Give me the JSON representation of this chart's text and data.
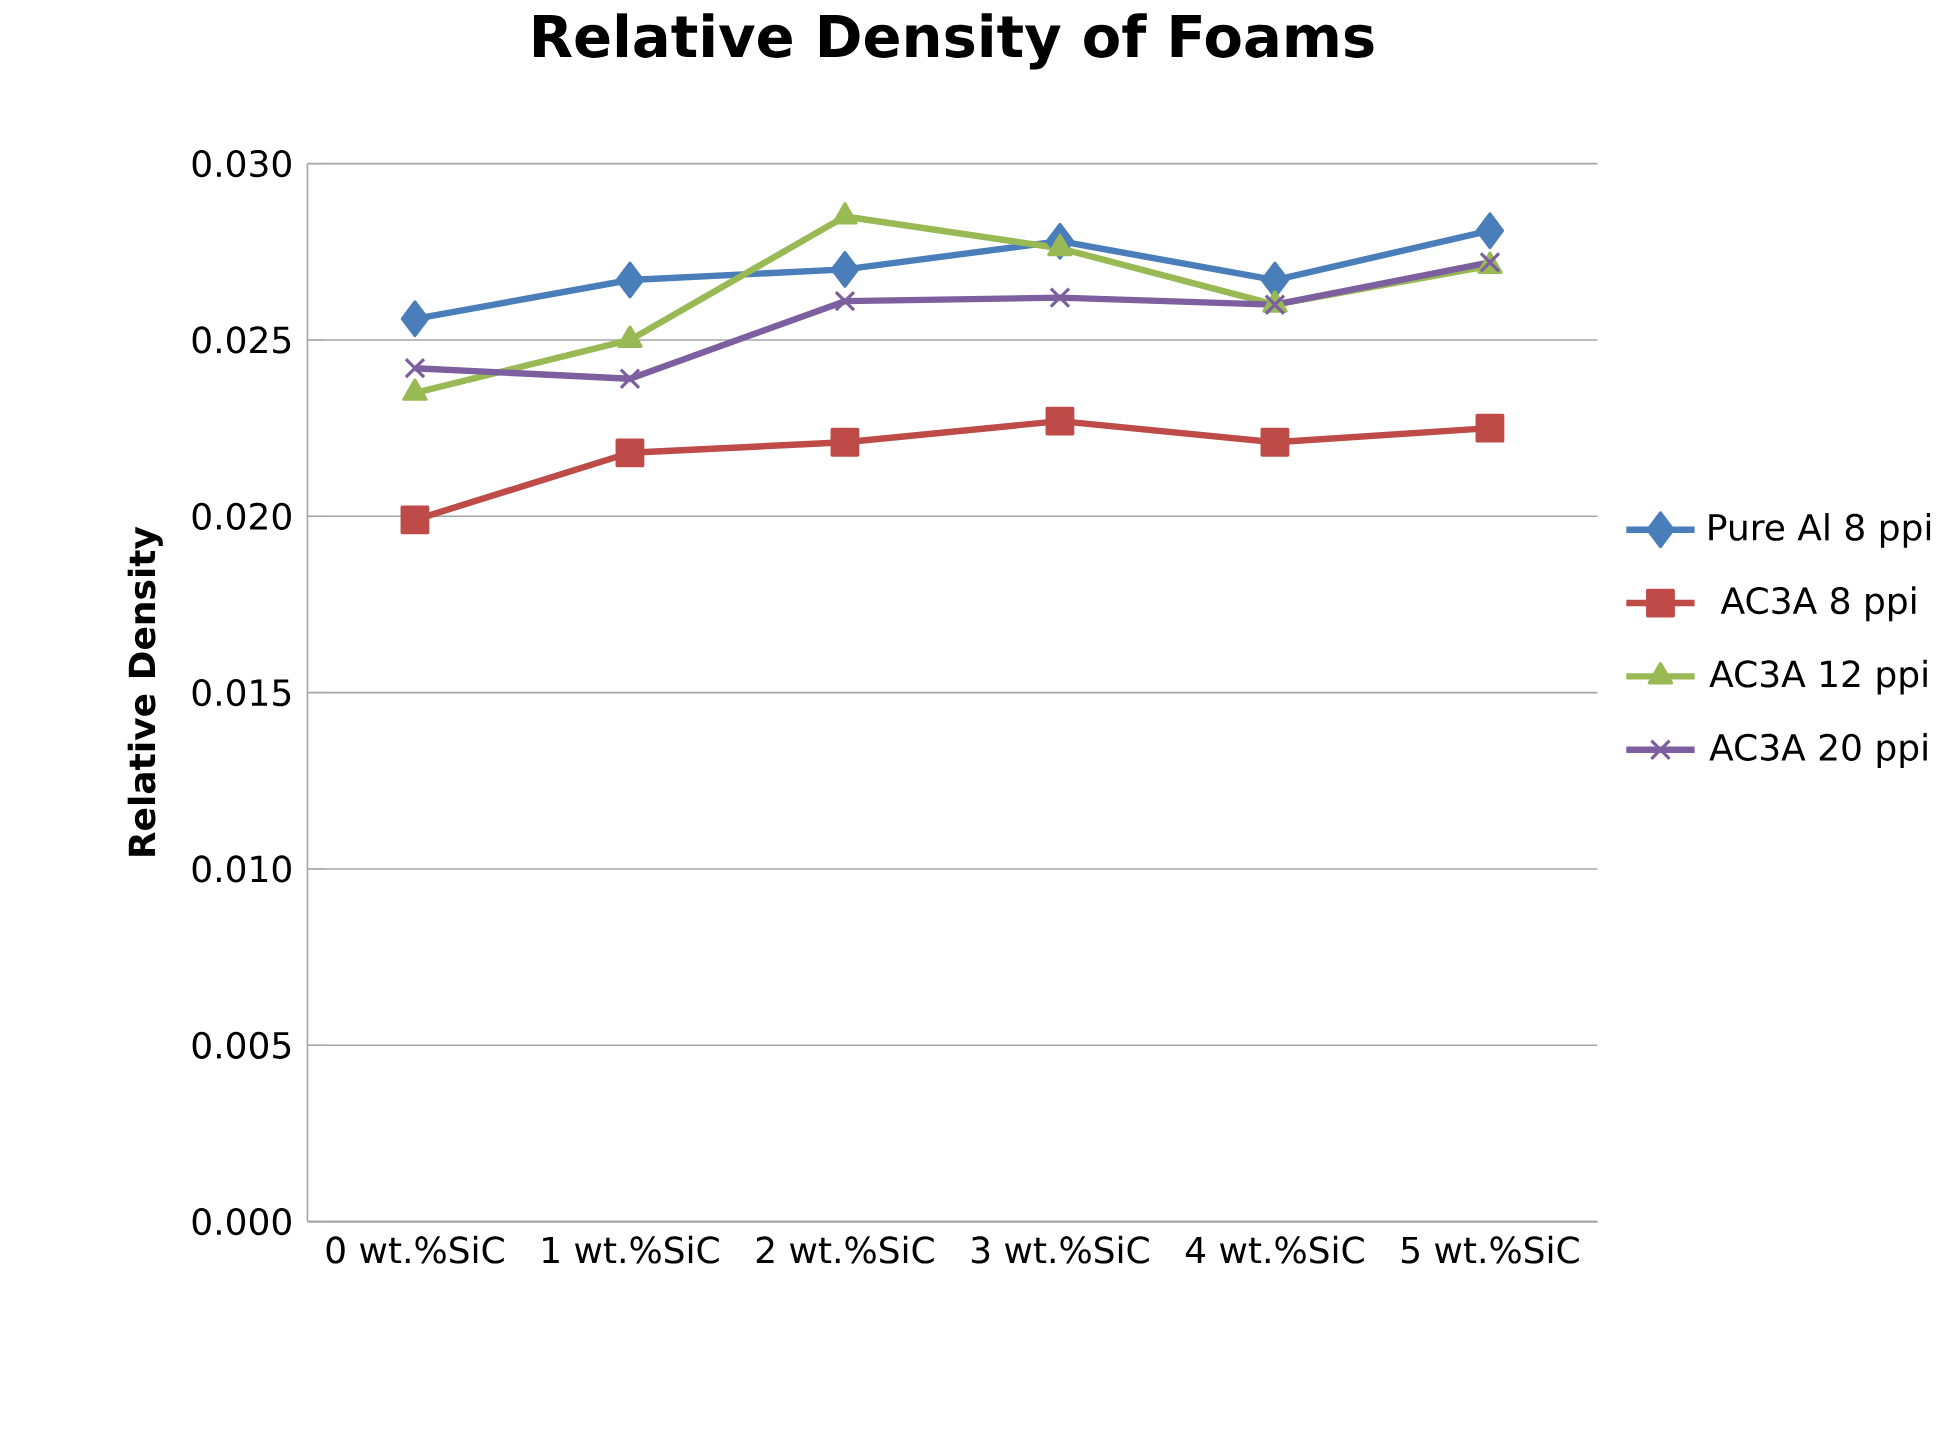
{
  "chart_data": {
    "type": "line",
    "title": "Relative Density of Foams",
    "ylabel": "Relative Density",
    "categories": [
      "0 wt.%SiC",
      "1 wt.%SiC",
      "2 wt.%SiC",
      "3 wt.%SiC",
      "4 wt.%SiC",
      "5 wt.%SiC"
    ],
    "series": [
      {
        "name": "Pure Al 8 ppi",
        "color": "#4a7ebb",
        "marker": "diamond",
        "values": [
          0.0256,
          0.0267,
          0.027,
          0.0278,
          0.0267,
          0.0281
        ]
      },
      {
        "name": "AC3A 8 ppi",
        "color": "#be4b48",
        "marker": "square",
        "values": [
          0.0199,
          0.0218,
          0.0221,
          0.0227,
          0.0221,
          0.0225
        ]
      },
      {
        "name": "AC3A 12 ppi",
        "color": "#98b954",
        "marker": "triangle",
        "values": [
          0.0235,
          0.025,
          0.0285,
          0.0276,
          0.026,
          0.0271
        ]
      },
      {
        "name": "AC3A 20 ppi",
        "color": "#7d5fa0",
        "marker": "cross",
        "values": [
          0.0242,
          0.0239,
          0.0261,
          0.0262,
          0.026,
          0.0272
        ]
      }
    ],
    "ylim": [
      0,
      0.03
    ],
    "yticks": [
      {
        "value": 0,
        "label": "0.000"
      },
      {
        "value": 0.005,
        "label": "0.005"
      },
      {
        "value": 0.01,
        "label": "0.010"
      },
      {
        "value": 0.015,
        "label": "0.015"
      },
      {
        "value": 0.02,
        "label": "0.020"
      },
      {
        "value": 0.025,
        "label": "0.025"
      },
      {
        "value": 0.03,
        "label": "0.030"
      }
    ],
    "grid": "y",
    "legend": "right",
    "line_style": "solid"
  }
}
